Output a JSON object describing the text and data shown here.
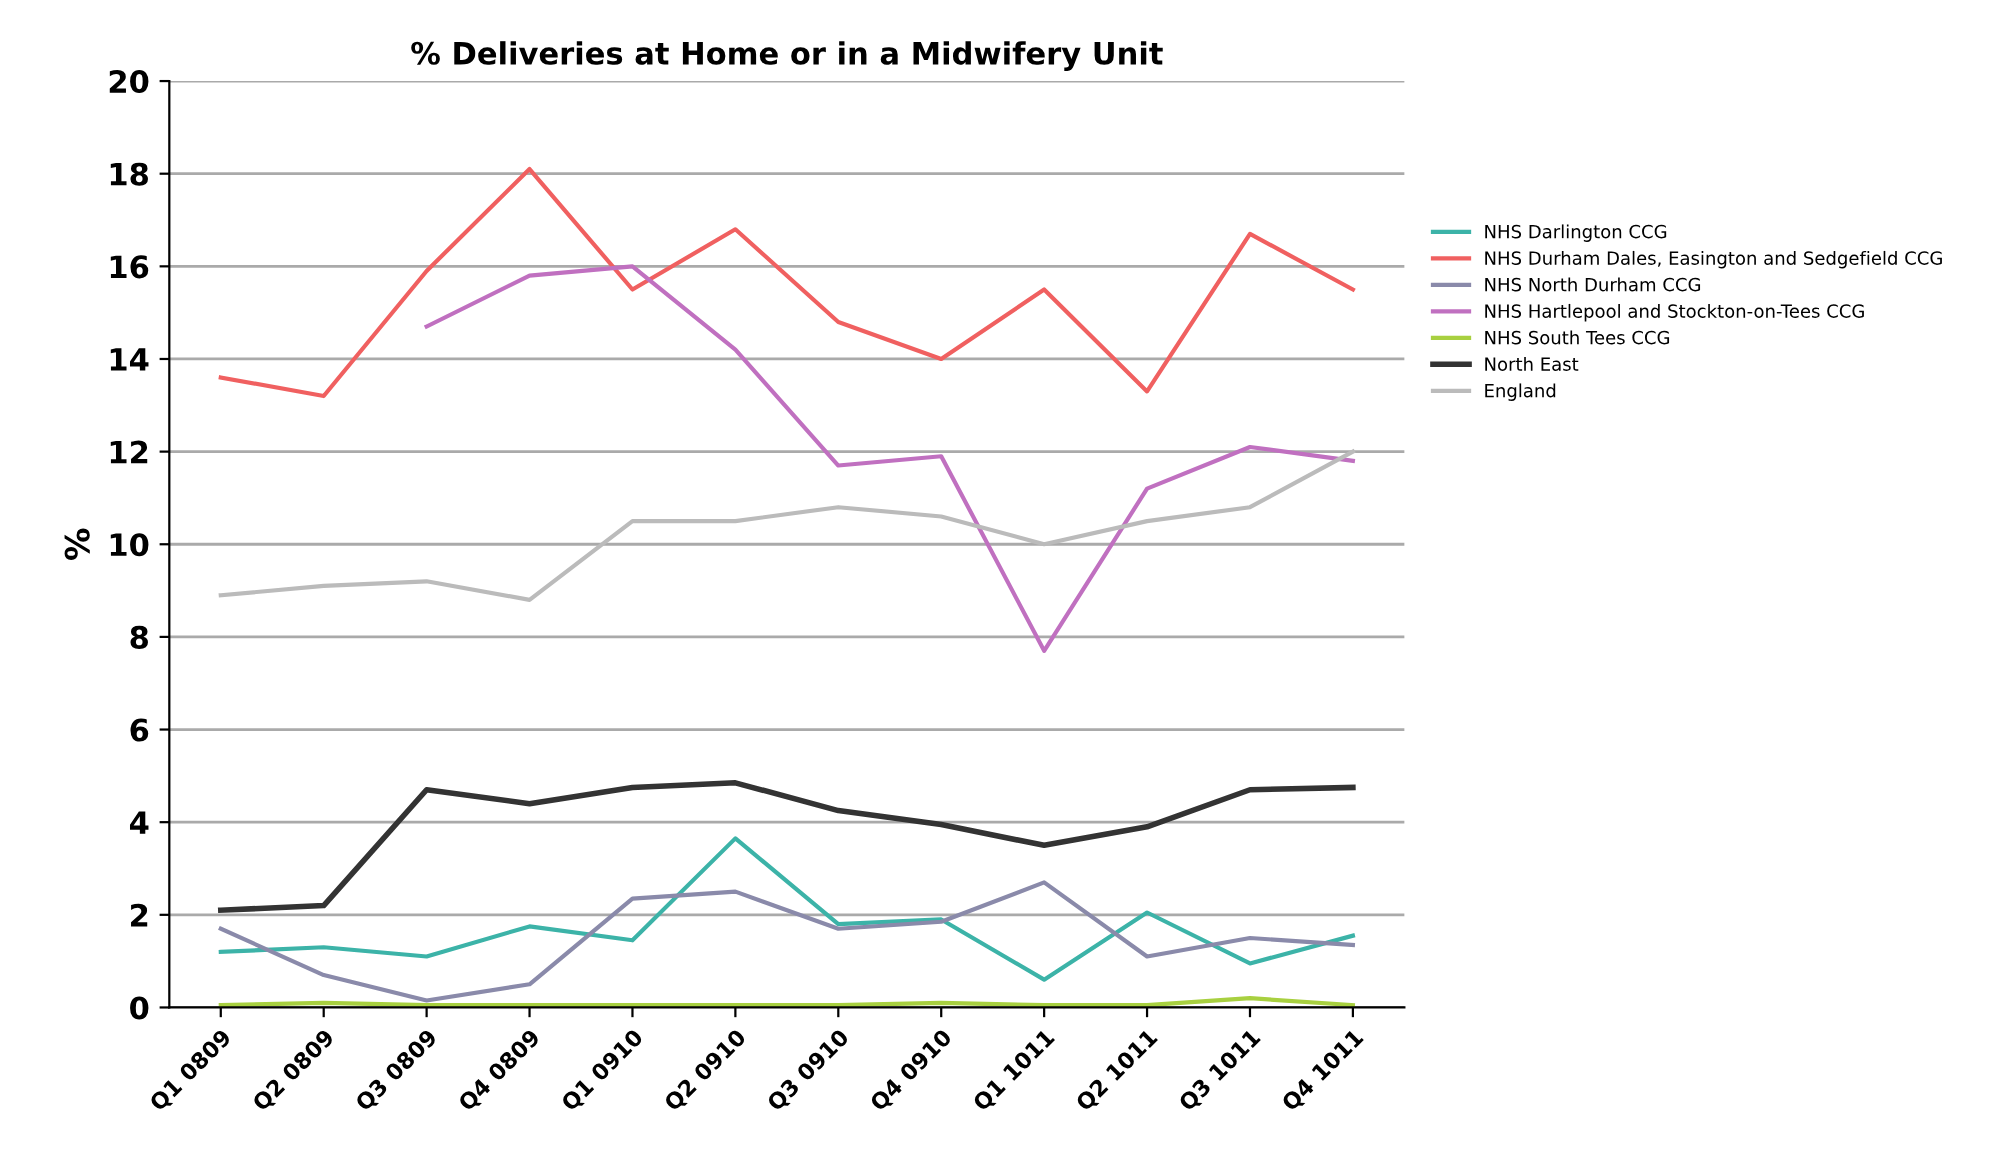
{
  "chart_data": {
    "type": "line",
    "title": "% Deliveries at Home or in a Midwifery Unit",
    "ylabel": "%",
    "categories": [
      "Q1 0809",
      "Q2 0809",
      "Q3 0809",
      "Q4 0809",
      "Q1 0910",
      "Q2 0910",
      "Q3 0910",
      "Q4 0910",
      "Q1 1011",
      "Q2 1011",
      "Q3 1011",
      "Q4 1011"
    ],
    "series": [
      {
        "name": "NHS Darlington CCG",
        "color": "#3cb3a8",
        "values": [
          1.2,
          1.3,
          1.1,
          1.75,
          1.45,
          3.65,
          1.8,
          1.9,
          0.6,
          2.05,
          0.95,
          1.55
        ]
      },
      {
        "name": "NHS Durham Dales, Easington and Sedgefield CCG",
        "color": "#f06060",
        "values": [
          13.6,
          13.2,
          15.9,
          18.1,
          15.5,
          16.8,
          14.8,
          14.0,
          15.5,
          13.3,
          16.7,
          15.5
        ]
      },
      {
        "name": "NHS North Durham CCG",
        "color": "#8a8aaa",
        "values": [
          1.7,
          0.7,
          0.15,
          0.5,
          2.35,
          2.5,
          1.7,
          1.85,
          2.7,
          1.1,
          1.5,
          1.35
        ]
      },
      {
        "name": "NHS Hartlepool and Stockton-on-Tees CCG",
        "color": "#c070c0",
        "values": [
          null,
          null,
          14.7,
          15.8,
          16.0,
          14.2,
          11.7,
          11.9,
          7.7,
          11.2,
          12.1,
          11.8
        ]
      },
      {
        "name": "NHS South Tees CCG",
        "color": "#a8d040",
        "values": [
          0.05,
          0.1,
          0.05,
          0.05,
          0.05,
          0.05,
          0.05,
          0.1,
          0.05,
          0.05,
          0.2,
          0.05
        ]
      },
      {
        "name": "North East",
        "color": "#333333",
        "values": [
          2.1,
          2.2,
          4.7,
          4.4,
          4.75,
          4.85,
          4.25,
          3.95,
          3.5,
          3.9,
          4.7,
          4.75
        ]
      },
      {
        "name": "England",
        "color": "#bbbbbb",
        "values": [
          8.9,
          9.1,
          9.2,
          8.8,
          10.5,
          10.5,
          10.8,
          10.6,
          10.0,
          10.5,
          10.8,
          12.0
        ]
      }
    ],
    "ylim": [
      0,
      20
    ],
    "yticks": [
      0,
      2,
      4,
      6,
      8,
      10,
      12,
      14,
      16,
      18,
      20
    ],
    "grid": "y",
    "legend": "right",
    "marker": "none",
    "line_style": "solid"
  }
}
